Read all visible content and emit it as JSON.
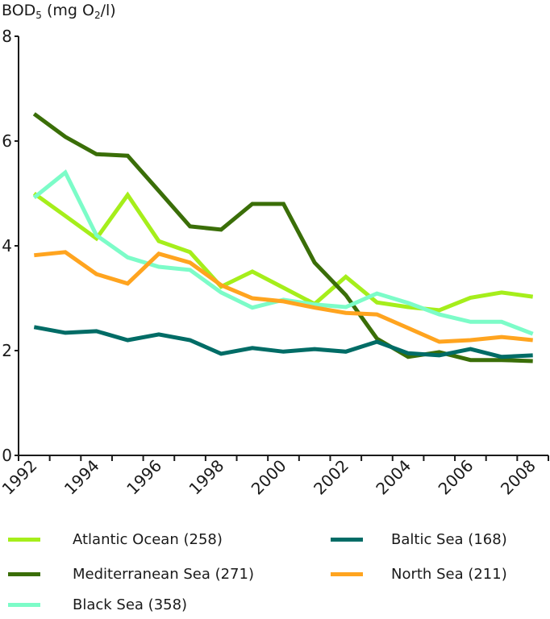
{
  "chart_data": {
    "type": "line",
    "title": "",
    "ylabel_main": "BOD",
    "ylabel_sub": "5",
    "ylabel_rest_a": " (mg O",
    "ylabel_sub2": "2",
    "ylabel_rest_b": "/l)",
    "xlabel": "",
    "ylim": [
      0,
      8
    ],
    "yticks": [
      0,
      2,
      4,
      6,
      8
    ],
    "x": [
      1992,
      1993,
      1994,
      1995,
      1996,
      1997,
      1998,
      1999,
      2000,
      2001,
      2002,
      2003,
      2004,
      2005,
      2006,
      2007,
      2008
    ],
    "xtick_labels": [
      "1992",
      "1994",
      "1996",
      "1998",
      "2000",
      "2002",
      "2004",
      "2006",
      "2008"
    ],
    "grid": false,
    "legend_position": "bottom",
    "series": [
      {
        "name": "Atlantic Ocean (258)",
        "color": "#a5ee1b",
        "values": [
          5.0,
          4.57,
          4.14,
          4.97,
          4.09,
          3.88,
          3.22,
          3.51,
          3.2,
          2.89,
          3.41,
          2.92,
          2.83,
          2.77,
          3.01,
          3.11,
          3.03
        ]
      },
      {
        "name": "Mediterranean Sea (271)",
        "color": "#3a6e08",
        "values": [
          6.52,
          6.08,
          5.75,
          5.72,
          5.05,
          4.37,
          4.31,
          4.8,
          4.8,
          3.68,
          3.06,
          2.23,
          1.88,
          1.97,
          1.82,
          1.82,
          1.8
        ]
      },
      {
        "name": "Black Sea (358)",
        "color": "#7cfcc8",
        "values": [
          4.92,
          5.4,
          4.2,
          3.78,
          3.6,
          3.54,
          3.11,
          2.82,
          2.97,
          2.88,
          2.83,
          3.09,
          2.91,
          2.69,
          2.55,
          2.55,
          2.32
        ]
      },
      {
        "name": "Baltic Sea (168)",
        "color": "#006c66",
        "values": [
          2.45,
          2.34,
          2.37,
          2.2,
          2.31,
          2.2,
          1.94,
          2.05,
          1.98,
          2.03,
          1.98,
          2.17,
          1.95,
          1.91,
          2.03,
          1.88,
          1.91
        ]
      },
      {
        "name": "North Sea (211)",
        "color": "#ffa41f",
        "values": [
          3.82,
          3.88,
          3.46,
          3.28,
          3.85,
          3.68,
          3.25,
          3.0,
          2.94,
          2.82,
          2.72,
          2.69,
          2.43,
          2.17,
          2.2,
          2.26,
          2.2
        ]
      }
    ]
  }
}
